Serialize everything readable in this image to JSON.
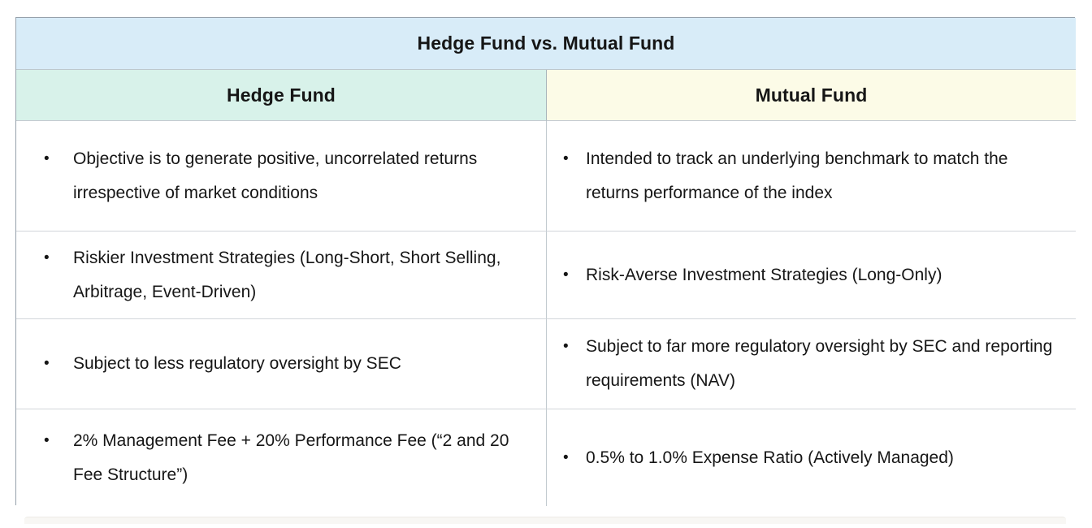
{
  "table": {
    "title": "Hedge Fund vs. Mutual Fund",
    "bullet_char": "•",
    "columns": [
      {
        "label": "Hedge Fund"
      },
      {
        "label": "Mutual Fund"
      }
    ],
    "rows": [
      {
        "cells": [
          "Objective is to generate positive, uncorrelated returns irrespective of market conditions",
          "Intended to track an underlying benchmark to match the returns performance of the index"
        ]
      },
      {
        "cells": [
          "Riskier Investment Strategies (Long-Short, Short Selling, Arbitrage, Event-Driven)",
          "Risk-Averse Investment Strategies (Long-Only)"
        ]
      },
      {
        "cells": [
          "Subject to less regulatory oversight by SEC",
          "Subject to far more regulatory oversight by SEC and reporting requirements (NAV)"
        ]
      },
      {
        "cells": [
          "2% Management Fee + 20% Performance Fee (“2 and 20 Fee Structure”)",
          "0.5% to 1.0% Expense Ratio (Actively Managed)"
        ]
      }
    ],
    "colors": {
      "title_background": "#d8ecf8",
      "hedge_header_background": "#d8f2ea",
      "mutual_header_background": "#fcfbe7",
      "outer_border": "#96a1ab",
      "inner_border": "#d2d6da",
      "text": "#161616",
      "page_background": "#ffffff"
    }
  }
}
